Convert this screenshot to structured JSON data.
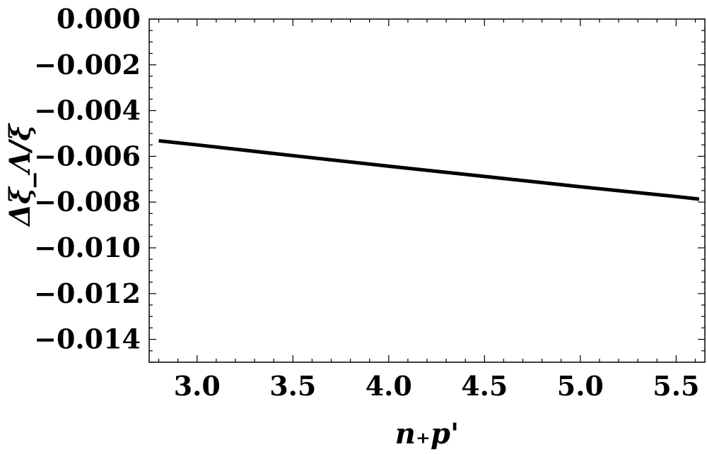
{
  "chart_data": {
    "type": "line",
    "xlabel": "n₊p'",
    "ylabel": "Δξ_Λ/ξ",
    "xlim": [
      2.75,
      5.65
    ],
    "ylim": [
      -0.015,
      0.0
    ],
    "x_ticks": [
      3.0,
      3.5,
      4.0,
      4.5,
      5.0,
      5.5
    ],
    "x_tick_labels": [
      "3.0",
      "3.5",
      "4.0",
      "4.5",
      "5.0",
      "5.5"
    ],
    "y_ticks": [
      0.0,
      -0.002,
      -0.004,
      -0.006,
      -0.008,
      -0.01,
      -0.012,
      -0.014
    ],
    "y_tick_labels": [
      "0.000",
      "−0.002",
      "−0.004",
      "−0.006",
      "−0.008",
      "−0.010",
      "−0.012",
      "−0.014"
    ],
    "grid": false,
    "series": [
      {
        "x": [
          2.8,
          3.0,
          3.5,
          4.0,
          4.5,
          5.0,
          5.5,
          5.62
        ],
        "y": [
          -0.00532,
          -0.0055,
          -0.00597,
          -0.00643,
          -0.00688,
          -0.00733,
          -0.00776,
          -0.00787
        ],
        "color": "#000000"
      }
    ]
  }
}
